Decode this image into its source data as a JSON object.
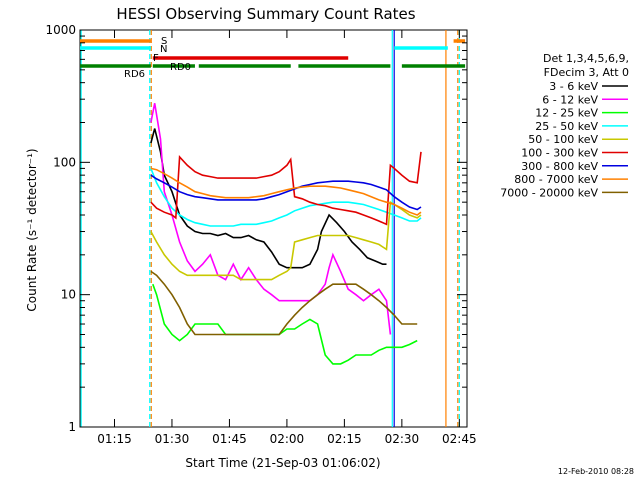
{
  "chart_data": {
    "type": "line",
    "title": "HESSI Observing Summary Count Rates",
    "xlabel": "Start Time (21-Sep-03 01:06:02)",
    "ylabel": "Count Rate (s⁻¹ detector⁻¹)",
    "x_unit": "minutes after 01:06:02",
    "xlim": [
      0,
      101
    ],
    "ylim": [
      1,
      1000
    ],
    "y_scale": "log",
    "x_ticks": [
      {
        "x": 9,
        "label": "01:15"
      },
      {
        "x": 24,
        "label": "01:30"
      },
      {
        "x": 39,
        "label": "01:45"
      },
      {
        "x": 54,
        "label": "02:00"
      },
      {
        "x": 69,
        "label": "02:15"
      },
      {
        "x": 84,
        "label": "02:30"
      },
      {
        "x": 99,
        "label": "02:45"
      }
    ],
    "y_ticks": [
      {
        "y": 1,
        "label": "1"
      },
      {
        "y": 10,
        "label": "10"
      },
      {
        "y": 100,
        "label": "100"
      },
      {
        "y": 1000,
        "label": "1000"
      }
    ],
    "legend": {
      "header": [
        "Det 1,3,4,5,6,9,",
        "FDecim 3, Att 0"
      ],
      "placement": "right"
    },
    "series": [
      {
        "name": "3 - 6 keV",
        "color": "#000000",
        "x": [
          18.5,
          19.5,
          21,
          22,
          24,
          26,
          28,
          30,
          32,
          34,
          36,
          38,
          40,
          42,
          44,
          46,
          48,
          50,
          52,
          54,
          56,
          58,
          60,
          62,
          63,
          65,
          67,
          69,
          71,
          73,
          75,
          77,
          79,
          80
        ],
        "y": [
          140,
          180,
          120,
          80,
          60,
          40,
          33,
          30,
          29,
          29,
          28,
          29,
          27,
          27,
          28,
          26,
          25,
          21,
          17,
          16,
          16,
          16,
          17,
          22,
          30,
          40,
          35,
          30,
          25,
          22,
          19,
          18,
          17,
          17
        ]
      },
      {
        "name": "6 - 12 keV",
        "color": "#ff00ff",
        "x": [
          18.5,
          19.5,
          21,
          22,
          24,
          26,
          28,
          30,
          32,
          34,
          36,
          38,
          40,
          42,
          44,
          46,
          48,
          50,
          52,
          54,
          56,
          58,
          60,
          62,
          64,
          65,
          66,
          68,
          70,
          72,
          74,
          76,
          78,
          80,
          81
        ],
        "y": [
          200,
          280,
          150,
          60,
          40,
          25,
          18,
          15,
          17,
          20,
          14,
          13,
          17,
          13,
          16,
          13,
          11,
          10,
          9,
          9,
          9,
          9,
          9,
          10,
          12,
          16,
          20,
          15,
          11,
          10,
          9,
          10,
          11,
          9,
          5
        ]
      },
      {
        "name": "12 - 25 keV",
        "color": "#00ff00",
        "x": [
          19,
          20,
          22,
          24,
          26,
          28,
          30,
          32,
          34,
          36,
          38,
          40,
          42,
          44,
          46,
          48,
          50,
          52,
          54,
          56,
          58,
          60,
          62,
          64,
          66,
          68,
          70,
          72,
          74,
          76,
          78,
          80,
          82,
          84,
          86,
          88
        ],
        "y": [
          12,
          10,
          6,
          5,
          4.5,
          5,
          6,
          6,
          6,
          6,
          5,
          5,
          5,
          5,
          5,
          5,
          5,
          5,
          5.5,
          5.5,
          6,
          6.5,
          6,
          3.5,
          3,
          3,
          3.2,
          3.5,
          3.5,
          3.5,
          3.8,
          4,
          4,
          4,
          4.2,
          4.5
        ]
      },
      {
        "name": "25 - 50 keV",
        "color": "#00ffff",
        "x": [
          18.5,
          20,
          22,
          24,
          26,
          28,
          30,
          32,
          34,
          36,
          38,
          40,
          42,
          44,
          46,
          48,
          50,
          52,
          54,
          56,
          58,
          60,
          62,
          64,
          66,
          68,
          70,
          72,
          74,
          76,
          78,
          80,
          82,
          84,
          86,
          88,
          89
        ],
        "y": [
          90,
          70,
          55,
          45,
          40,
          37,
          35,
          34,
          33,
          33,
          33,
          33,
          34,
          34,
          34,
          35,
          36,
          38,
          40,
          43,
          45,
          47,
          48,
          49,
          50,
          50,
          50,
          49,
          48,
          46,
          44,
          42,
          40,
          38,
          36,
          36,
          38
        ]
      },
      {
        "name": "50 - 100 keV",
        "color": "#c8c800",
        "x": [
          18.5,
          20,
          22,
          24,
          26,
          28,
          30,
          32,
          34,
          36,
          38,
          40,
          42,
          44,
          46,
          48,
          50,
          52,
          54,
          55,
          56,
          58,
          60,
          62,
          64,
          66,
          68,
          70,
          72,
          74,
          76,
          78,
          80,
          81,
          82,
          84,
          86,
          88,
          89
        ],
        "y": [
          30,
          25,
          20,
          17,
          15,
          14,
          14,
          14,
          14,
          14,
          14,
          14,
          13,
          13,
          13,
          13,
          13,
          14,
          15,
          16,
          25,
          26,
          27,
          28,
          28,
          28,
          28,
          28,
          27,
          26,
          25,
          24,
          22,
          50,
          48,
          44,
          40,
          38,
          40
        ]
      },
      {
        "name": "100 - 300 keV",
        "color": "#e00000",
        "x": [
          18.5,
          20,
          22,
          24,
          25,
          26,
          28,
          30,
          32,
          34,
          36,
          38,
          40,
          42,
          44,
          46,
          48,
          50,
          52,
          54,
          55,
          56,
          58,
          60,
          62,
          64,
          66,
          68,
          70,
          72,
          74,
          76,
          78,
          80,
          81,
          82,
          84,
          86,
          88,
          89
        ],
        "y": [
          50,
          45,
          42,
          40,
          38,
          110,
          95,
          85,
          80,
          78,
          76,
          76,
          76,
          76,
          76,
          76,
          78,
          80,
          85,
          95,
          105,
          55,
          53,
          50,
          48,
          47,
          45,
          44,
          43,
          42,
          40,
          38,
          36,
          34,
          95,
          90,
          80,
          72,
          70,
          120
        ]
      },
      {
        "name": "300 - 800 keV",
        "color": "#0000e0",
        "x": [
          18.5,
          20,
          22,
          24,
          26,
          28,
          30,
          32,
          34,
          36,
          38,
          40,
          42,
          44,
          46,
          48,
          50,
          52,
          54,
          56,
          58,
          60,
          62,
          64,
          66,
          68,
          70,
          72,
          74,
          76,
          78,
          80,
          82,
          84,
          86,
          88,
          89
        ],
        "y": [
          80,
          75,
          70,
          65,
          60,
          57,
          55,
          54,
          53,
          52,
          52,
          52,
          52,
          52,
          52,
          53,
          55,
          57,
          60,
          63,
          66,
          68,
          70,
          71,
          72,
          72,
          72,
          71,
          70,
          68,
          65,
          62,
          55,
          50,
          46,
          44,
          46
        ]
      },
      {
        "name": "800 - 7000 keV",
        "color": "#ff8000",
        "x": [
          18.5,
          20,
          22,
          24,
          26,
          28,
          30,
          32,
          34,
          36,
          38,
          40,
          42,
          44,
          46,
          48,
          50,
          52,
          54,
          56,
          58,
          60,
          62,
          64,
          66,
          68,
          70,
          72,
          74,
          76,
          78,
          80,
          82,
          84,
          86,
          88,
          89
        ],
        "y": [
          90,
          88,
          82,
          76,
          70,
          65,
          60,
          58,
          56,
          55,
          54,
          54,
          54,
          54,
          55,
          56,
          58,
          60,
          62,
          64,
          65,
          66,
          66,
          66,
          65,
          64,
          62,
          60,
          58,
          55,
          52,
          50,
          48,
          45,
          42,
          40,
          42
        ]
      },
      {
        "name": "7000 - 20000 keV",
        "color": "#806000",
        "x": [
          18.5,
          20,
          22,
          24,
          26,
          28,
          30,
          32,
          34,
          36,
          38,
          40,
          42,
          44,
          46,
          48,
          50,
          52,
          54,
          56,
          58,
          60,
          62,
          64,
          66,
          68,
          70,
          72,
          74,
          76,
          78,
          80,
          82,
          84,
          86,
          88
        ],
        "y": [
          15,
          14,
          12,
          10,
          8,
          6,
          5,
          5,
          5,
          5,
          5,
          5,
          5,
          5,
          5,
          5,
          5,
          5,
          6,
          7,
          8,
          9,
          10,
          11,
          12,
          12,
          12,
          12,
          11,
          10,
          9,
          8,
          7,
          6,
          6,
          6
        ]
      }
    ],
    "flags": [
      {
        "label": "S",
        "color": "#ff8000",
        "segments": [
          [
            0,
            18.5
          ],
          [
            97.5,
            100.5
          ]
        ]
      },
      {
        "label": "N",
        "color": "#00ffff",
        "segments": [
          [
            0,
            18.5
          ],
          [
            82,
            96
          ]
        ]
      },
      {
        "label": "F",
        "color": "#e00000",
        "segments": [
          [
            19,
            70
          ]
        ]
      },
      {
        "label": "RD0",
        "color": "#008000",
        "segments": [
          [
            19,
            30
          ],
          [
            31,
            55
          ],
          [
            57,
            81
          ],
          [
            84,
            100.5
          ]
        ]
      },
      {
        "label": "RD6",
        "color": "#008000",
        "segments": [
          [
            0,
            18.5
          ]
        ]
      }
    ],
    "vertical_lines": [
      {
        "x": 0.3,
        "color": "#00ffff",
        "style": "solid"
      },
      {
        "x": 18.2,
        "color": "#00ffff",
        "style": "dashed"
      },
      {
        "x": 18.6,
        "color": "#ff8000",
        "style": "dashed"
      },
      {
        "x": 81.5,
        "color": "#00ffff",
        "style": "solid"
      },
      {
        "x": 82,
        "color": "#0000e0",
        "style": "solid"
      },
      {
        "x": 95.5,
        "color": "#ff8000",
        "style": "solid"
      },
      {
        "x": 98.6,
        "color": "#ff8000",
        "style": "dashed"
      },
      {
        "x": 99,
        "color": "#00ffff",
        "style": "dashed"
      }
    ],
    "footer_date": "12-Feb-2010 08:28"
  }
}
